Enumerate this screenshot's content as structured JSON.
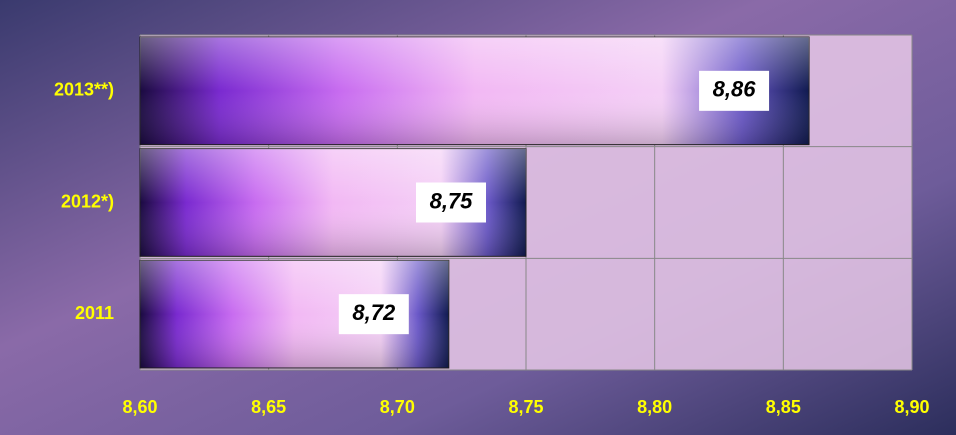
{
  "chart_data": {
    "type": "bar",
    "orientation": "horizontal",
    "categories": [
      "2011",
      "2012*)",
      "2013**)"
    ],
    "values": [
      8.72,
      8.75,
      8.86
    ],
    "value_labels": [
      "8,72",
      "8,75",
      "8,86"
    ],
    "xlim": [
      8.6,
      8.9
    ],
    "xticks": [
      {
        "value": 8.6,
        "label": "8,60"
      },
      {
        "value": 8.65,
        "label": "8,65"
      },
      {
        "value": 8.7,
        "label": "8,70"
      },
      {
        "value": 8.75,
        "label": "8,75"
      },
      {
        "value": 8.8,
        "label": "8,80"
      },
      {
        "value": 8.85,
        "label": "8,85"
      },
      {
        "value": 8.9,
        "label": "8,90"
      }
    ],
    "grid": true
  }
}
